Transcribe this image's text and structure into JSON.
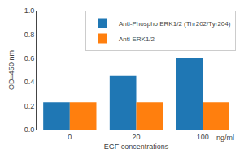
{
  "chart_data": {
    "type": "bar",
    "categories": [
      "0",
      "20",
      "100"
    ],
    "series": [
      {
        "name": "Anti-Phospho ERK1/2 (Thr202/Tyr204)",
        "values": [
          0.23,
          0.45,
          0.6
        ]
      },
      {
        "name": "Anti-ERK1/2",
        "values": [
          0.23,
          0.23,
          0.23
        ]
      }
    ],
    "ylabel": "OD=450 nm",
    "xlabel": "EGF concentrations",
    "annotations": [
      "ng/ml"
    ],
    "ylim": [
      0.0,
      1.0
    ],
    "yticks": [
      {
        "value": 0,
        "label": "0.0"
      },
      0.2,
      0.4,
      0.6,
      0.8,
      {
        "value": 1,
        "label": "1.0"
      }
    ],
    "grid": false,
    "legend": "upper right"
  }
}
